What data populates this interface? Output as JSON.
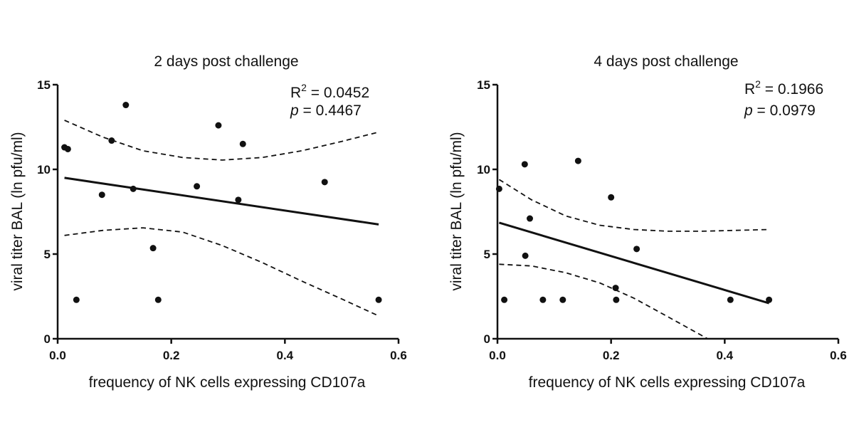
{
  "chart_data": [
    {
      "type": "scatter",
      "title": "2 days post challenge",
      "xlabel": "frequency of NK cells expressing CD107a",
      "ylabel": "viral titer BAL (ln pfu/ml)",
      "xlim": [
        0.0,
        0.6
      ],
      "ylim": [
        0,
        15
      ],
      "x_ticks": [
        "0.0",
        "0.2",
        "0.4",
        "0.6"
      ],
      "y_ticks": [
        "0",
        "5",
        "10",
        "15"
      ],
      "grid": false,
      "points": [
        {
          "x": 0.012,
          "y": 11.3
        },
        {
          "x": 0.018,
          "y": 11.2
        },
        {
          "x": 0.033,
          "y": 2.3
        },
        {
          "x": 0.078,
          "y": 8.5
        },
        {
          "x": 0.095,
          "y": 11.7
        },
        {
          "x": 0.12,
          "y": 13.8
        },
        {
          "x": 0.133,
          "y": 8.85
        },
        {
          "x": 0.168,
          "y": 5.35
        },
        {
          "x": 0.177,
          "y": 2.3
        },
        {
          "x": 0.245,
          "y": 9.0
        },
        {
          "x": 0.283,
          "y": 12.6
        },
        {
          "x": 0.318,
          "y": 8.2
        },
        {
          "x": 0.326,
          "y": 11.5
        },
        {
          "x": 0.47,
          "y": 9.25
        },
        {
          "x": 0.565,
          "y": 2.3
        }
      ],
      "fit_line": [
        {
          "x": 0.012,
          "y": 9.5
        },
        {
          "x": 0.565,
          "y": 6.75
        }
      ],
      "ci_upper": [
        {
          "x": 0.012,
          "y": 12.9
        },
        {
          "x": 0.08,
          "y": 11.9
        },
        {
          "x": 0.15,
          "y": 11.1
        },
        {
          "x": 0.22,
          "y": 10.7
        },
        {
          "x": 0.29,
          "y": 10.55
        },
        {
          "x": 0.36,
          "y": 10.7
        },
        {
          "x": 0.43,
          "y": 11.1
        },
        {
          "x": 0.5,
          "y": 11.65
        },
        {
          "x": 0.565,
          "y": 12.2
        }
      ],
      "ci_lower": [
        {
          "x": 0.012,
          "y": 6.1
        },
        {
          "x": 0.08,
          "y": 6.4
        },
        {
          "x": 0.15,
          "y": 6.55
        },
        {
          "x": 0.22,
          "y": 6.3
        },
        {
          "x": 0.29,
          "y": 5.5
        },
        {
          "x": 0.36,
          "y": 4.5
        },
        {
          "x": 0.43,
          "y": 3.4
        },
        {
          "x": 0.5,
          "y": 2.35
        },
        {
          "x": 0.565,
          "y": 1.35
        }
      ],
      "r2_label": "R",
      "r2_exp": "2",
      "r2_value": " = 0.0452",
      "p_label": "p",
      "p_value": " = 0.4467"
    },
    {
      "type": "scatter",
      "title": "4 days post challenge",
      "xlabel": "frequency of NK cells expressing CD107a",
      "ylabel": "viral titer BAL (ln pfu/ml)",
      "xlim": [
        0.0,
        0.6
      ],
      "ylim": [
        0,
        15
      ],
      "x_ticks": [
        "0.0",
        "0.2",
        "0.4",
        "0.6"
      ],
      "y_ticks": [
        "0",
        "5",
        "10",
        "15"
      ],
      "grid": false,
      "points": [
        {
          "x": 0.003,
          "y": 8.85
        },
        {
          "x": 0.012,
          "y": 2.3
        },
        {
          "x": 0.048,
          "y": 10.3
        },
        {
          "x": 0.049,
          "y": 4.9
        },
        {
          "x": 0.057,
          "y": 7.1
        },
        {
          "x": 0.08,
          "y": 2.3
        },
        {
          "x": 0.115,
          "y": 2.3
        },
        {
          "x": 0.142,
          "y": 10.5
        },
        {
          "x": 0.2,
          "y": 8.35
        },
        {
          "x": 0.208,
          "y": 3.0
        },
        {
          "x": 0.209,
          "y": 2.3
        },
        {
          "x": 0.245,
          "y": 5.3
        },
        {
          "x": 0.41,
          "y": 2.3
        },
        {
          "x": 0.478,
          "y": 2.3
        }
      ],
      "fit_line": [
        {
          "x": 0.003,
          "y": 6.85
        },
        {
          "x": 0.478,
          "y": 2.1
        }
      ],
      "ci_upper": [
        {
          "x": 0.003,
          "y": 9.4
        },
        {
          "x": 0.06,
          "y": 8.2
        },
        {
          "x": 0.12,
          "y": 7.25
        },
        {
          "x": 0.18,
          "y": 6.7
        },
        {
          "x": 0.24,
          "y": 6.45
        },
        {
          "x": 0.3,
          "y": 6.35
        },
        {
          "x": 0.36,
          "y": 6.35
        },
        {
          "x": 0.42,
          "y": 6.4
        },
        {
          "x": 0.478,
          "y": 6.45
        }
      ],
      "ci_lower": [
        {
          "x": 0.003,
          "y": 4.4
        },
        {
          "x": 0.06,
          "y": 4.3
        },
        {
          "x": 0.12,
          "y": 3.9
        },
        {
          "x": 0.18,
          "y": 3.3
        },
        {
          "x": 0.24,
          "y": 2.4
        },
        {
          "x": 0.3,
          "y": 1.3
        },
        {
          "x": 0.37,
          "y": 0.0
        }
      ],
      "r2_label": "R",
      "r2_exp": "2",
      "r2_value": " = 0.1966",
      "p_label": "p",
      "p_value": " = 0.0979"
    }
  ]
}
